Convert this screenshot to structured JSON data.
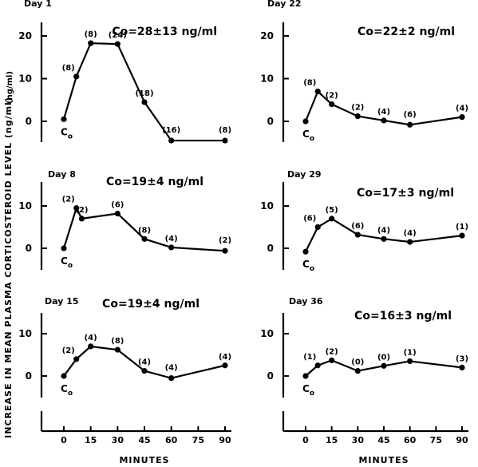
{
  "figure": {
    "ylabel": "INCREASE IN MEAN PLASMA CORTICOSTEROID LEVEL  (ng/ml)",
    "xlabel": "MINUTES",
    "baseline_label": "C",
    "baseline_sub": "o"
  },
  "chart_data": [
    {
      "type": "line",
      "title": "Day 1",
      "annotation": "Co=28±13 ng/ml",
      "x": [
        0,
        7,
        15,
        30,
        45,
        60,
        90
      ],
      "y": [
        0.5,
        10.5,
        18.3,
        18.1,
        4.5,
        -4.5,
        -4.5
      ],
      "n_labels": [
        "",
        "(8)",
        "(8)",
        "(24)",
        "(18)",
        "(16)",
        "(8)"
      ],
      "xlim": [
        0,
        90
      ],
      "yticks": [
        0,
        10,
        20
      ],
      "ylabel": "(ng/ml)"
    },
    {
      "type": "line",
      "title": "Day 22",
      "annotation": "Co=22±2 ng/ml",
      "x": [
        0,
        7,
        15,
        30,
        45,
        60,
        90
      ],
      "y": [
        0,
        7,
        4,
        1.2,
        0.2,
        -0.8,
        1
      ],
      "n_labels": [
        "",
        "(8)",
        "(2)",
        "(2)",
        "(4)",
        "(6)",
        "(4)"
      ],
      "xlim": [
        0,
        90
      ],
      "yticks": [
        0,
        10,
        20
      ]
    },
    {
      "type": "line",
      "title": "Day 8",
      "annotation": "Co=19±4 ng/ml",
      "x": [
        0,
        7,
        10,
        30,
        45,
        60,
        90
      ],
      "y": [
        0,
        9.5,
        7,
        8.2,
        2.2,
        0.2,
        -0.6
      ],
      "n_labels": [
        "",
        "(2)",
        "(2)",
        "(6)",
        "(8)",
        "(4)",
        "(2)"
      ],
      "xlim": [
        0,
        90
      ],
      "yticks": [
        0,
        10
      ]
    },
    {
      "type": "line",
      "title": "Day 29",
      "annotation": "Co=17±3 ng/ml",
      "x": [
        0,
        7,
        15,
        30,
        45,
        60,
        90
      ],
      "y": [
        -0.8,
        5,
        7,
        3.2,
        2.2,
        1.5,
        3
      ],
      "n_labels": [
        "",
        "(6)",
        "(5)",
        "(6)",
        "(4)",
        "(4)",
        "(1)"
      ],
      "xlim": [
        0,
        90
      ],
      "yticks": [
        0,
        10
      ]
    },
    {
      "type": "line",
      "title": "Day 15",
      "annotation": "Co=19±4 ng/ml",
      "x": [
        0,
        7,
        15,
        30,
        45,
        60,
        90
      ],
      "y": [
        0,
        4,
        7,
        6.2,
        1.2,
        -0.5,
        2.5
      ],
      "n_labels": [
        "",
        "(2)",
        "(4)",
        "(8)",
        "(4)",
        "(4)",
        "(4)"
      ],
      "xlim": [
        0,
        90
      ],
      "yticks": [
        0,
        10
      ]
    },
    {
      "type": "line",
      "title": "Day 36",
      "annotation": "Co=16±3 ng/ml",
      "x": [
        0,
        7,
        15,
        30,
        45,
        60,
        90
      ],
      "y": [
        0,
        2.5,
        3.7,
        1.2,
        2.4,
        3.5,
        2
      ],
      "n_labels": [
        "",
        "(1)",
        "(2)",
        "(0)",
        "(0)",
        "(1)",
        "(3)"
      ],
      "xlim": [
        0,
        90
      ],
      "yticks": [
        0,
        10
      ]
    }
  ],
  "x_axis": {
    "ticks": [
      0,
      15,
      30,
      45,
      60,
      75,
      90
    ],
    "tick_labels": [
      "0",
      "15",
      "30",
      "45",
      "60",
      "75",
      "90"
    ]
  }
}
